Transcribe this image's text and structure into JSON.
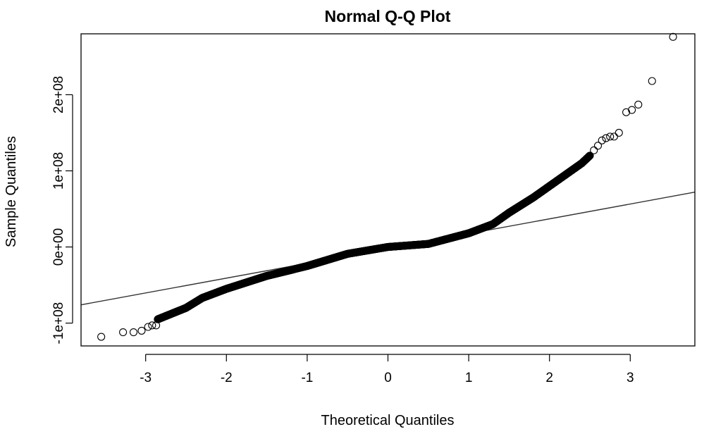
{
  "chart_data": {
    "type": "scatter",
    "title": "Normal Q-Q Plot",
    "xlabel": "Theoretical Quantiles",
    "ylabel": "Sample Quantiles",
    "xlim": [
      -3.8,
      3.8
    ],
    "ylim": [
      -130000000,
      280000000
    ],
    "x_ticks": [
      -3,
      -2,
      -1,
      0,
      1,
      2,
      3
    ],
    "x_tick_labels": [
      "-3",
      "-2",
      "-1",
      "0",
      "1",
      "2",
      "3"
    ],
    "y_ticks": [
      -100000000,
      0,
      100000000,
      200000000
    ],
    "y_tick_labels": [
      "-1e+08",
      "0e+00",
      "1e+08",
      "2e+08"
    ],
    "grid": false,
    "legend": "none",
    "marker": "open-circle",
    "colors": {
      "points": "#000000",
      "line": "#333333",
      "frame": "#000000"
    },
    "qq_line": {
      "points": [
        [
          -3.8,
          -76000000
        ],
        [
          3.8,
          72000000
        ]
      ]
    },
    "curve_knots": [
      [
        -2.85,
        -95000000
      ],
      [
        -2.5,
        -80000000
      ],
      [
        -2.3,
        -67000000
      ],
      [
        -2.0,
        -55000000
      ],
      [
        -1.5,
        -38000000
      ],
      [
        -1.0,
        -25000000
      ],
      [
        -0.5,
        -9000000
      ],
      [
        0.0,
        0
      ],
      [
        0.5,
        4000000
      ],
      [
        1.0,
        18000000
      ],
      [
        1.3,
        30000000
      ],
      [
        1.5,
        45000000
      ],
      [
        1.8,
        65000000
      ],
      [
        2.0,
        80000000
      ],
      [
        2.2,
        95000000
      ],
      [
        2.4,
        110000000
      ],
      [
        2.5,
        120000000
      ]
    ],
    "curve_count": 1200,
    "series": [
      {
        "points": [
          [
            -3.55,
            -118000000
          ],
          [
            -3.28,
            -112000000
          ],
          [
            -3.15,
            -112000000
          ],
          [
            -3.05,
            -110000000
          ],
          [
            -2.97,
            -105000000
          ],
          [
            -2.92,
            -103000000
          ],
          [
            -2.87,
            -103000000
          ],
          [
            2.55,
            127000000
          ],
          [
            2.6,
            133000000
          ],
          [
            2.65,
            140000000
          ],
          [
            2.7,
            143000000
          ],
          [
            2.75,
            145000000
          ],
          [
            2.8,
            145000000
          ],
          [
            2.86,
            150000000
          ],
          [
            2.95,
            177000000
          ],
          [
            3.02,
            180000000
          ],
          [
            3.1,
            187000000
          ],
          [
            3.27,
            218000000
          ],
          [
            3.53,
            276000000
          ]
        ]
      }
    ]
  }
}
